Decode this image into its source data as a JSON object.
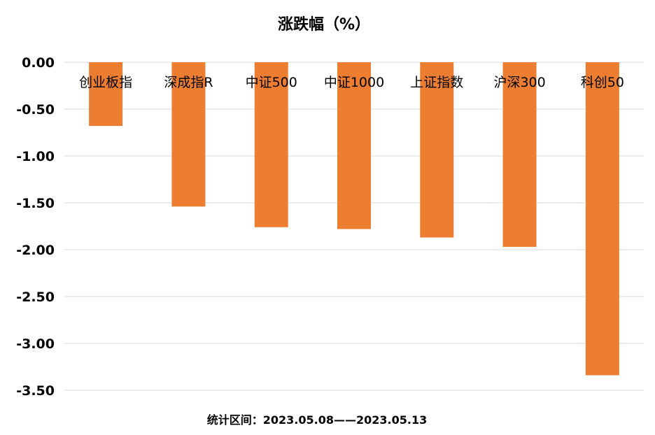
{
  "chart_data": {
    "type": "bar",
    "title": "涨跌幅（%）",
    "categories": [
      "创业板指",
      "深成指R",
      "中证500",
      "中证1000",
      "上证指数",
      "沪深300",
      "科创50"
    ],
    "values": [
      -0.68,
      -1.54,
      -1.76,
      -1.78,
      -1.87,
      -1.97,
      -3.34
    ],
    "ylim": [
      -3.5,
      0
    ],
    "yticks": [
      "0.00",
      "-0.50",
      "-1.00",
      "-1.50",
      "-2.00",
      "-2.50",
      "-3.00",
      "-3.50"
    ],
    "grid": true,
    "legend": "none",
    "bar_color": "#ed7d31",
    "xlabel": "",
    "ylabel": ""
  },
  "footer": {
    "text": "统计区间：2023.05.08——2023.05.13"
  }
}
